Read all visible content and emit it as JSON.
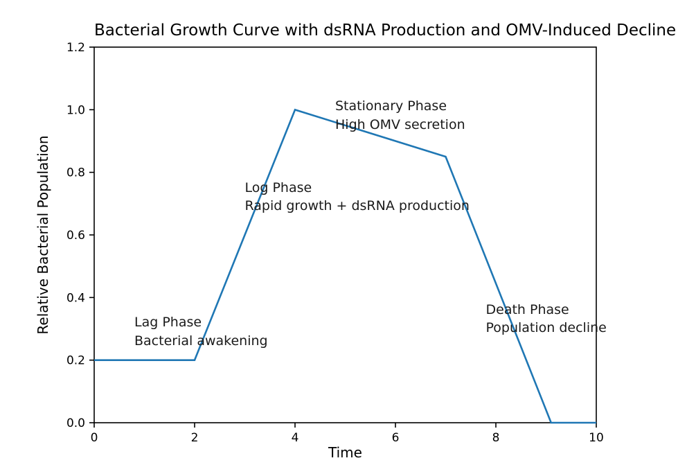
{
  "chart_data": {
    "type": "line",
    "title": "Bacterial Growth Curve with dsRNA Production and OMV-Induced Decline",
    "xlabel": "Time",
    "ylabel": "Relative Bacterial Population",
    "x": [
      0,
      2,
      4,
      7,
      9.1,
      10
    ],
    "y": [
      0.2,
      0.2,
      1.0,
      0.85,
      0.0,
      0.0
    ],
    "xlim": [
      0,
      10
    ],
    "ylim": [
      0,
      1.2
    ],
    "xticks": {
      "values": [
        0,
        2,
        4,
        6,
        8,
        10
      ],
      "labels": [
        "0",
        "2",
        "4",
        "6",
        "8",
        "10"
      ]
    },
    "yticks": {
      "values": [
        0,
        0.2,
        0.4,
        0.6,
        0.8,
        1.0,
        1.2
      ],
      "labels": [
        "0.0",
        "0.2",
        "0.4",
        "0.6",
        "0.8",
        "1.0",
        "1.2"
      ]
    },
    "grid": false,
    "legend": null,
    "line_color": "#1f77b4",
    "axis_color": "#000000",
    "annotations": [
      {
        "id": "lag-phase",
        "text": "Lag Phase\nBacterial awakening",
        "x": 0.8,
        "y": 0.35
      },
      {
        "id": "log-phase",
        "text": "Log Phase\nRapid growth + dsRNA production",
        "x": 3.0,
        "y": 0.78
      },
      {
        "id": "stationary-phase",
        "text": "Stationary Phase\nHigh OMV secretion",
        "x": 4.8,
        "y": 1.04
      },
      {
        "id": "death-phase",
        "text": "Death Phase\nPopulation decline",
        "x": 7.8,
        "y": 0.39
      }
    ]
  }
}
